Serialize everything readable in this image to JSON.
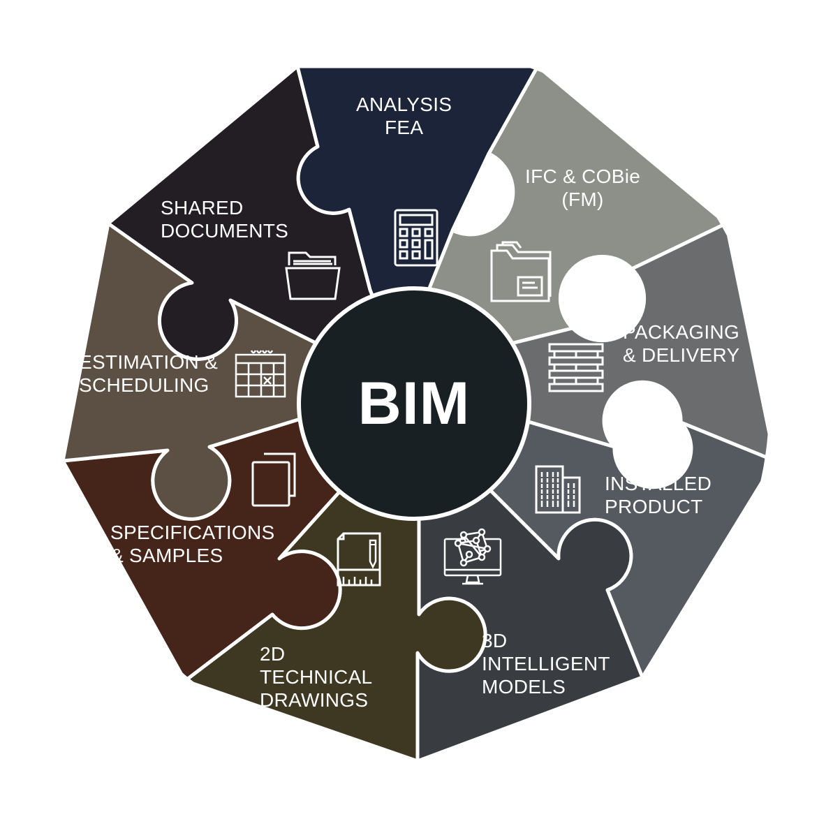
{
  "center": {
    "text": "BIM",
    "color": "#182023"
  },
  "segments": [
    {
      "id": "analysis",
      "lines": [
        "ANALYSIS",
        "FEA"
      ],
      "color": "#1b2438",
      "icon": "calculator-icon"
    },
    {
      "id": "ifc",
      "lines": [
        "IFC & COBie",
        "(FM)"
      ],
      "color": "#8d8f89",
      "icon": "folder-document-icon"
    },
    {
      "id": "packaging",
      "lines": [
        "PACKAGING",
        "& DELIVERY"
      ],
      "color": "#6a6c6d",
      "icon": "pallet-stack-icon"
    },
    {
      "id": "installed",
      "lines": [
        "INSTALLED",
        "PRODUCT"
      ],
      "color": "#555a61",
      "icon": "building-icon"
    },
    {
      "id": "models",
      "lines": [
        "3D",
        "INTELLIGENT",
        "MODELS"
      ],
      "color": "#393d41",
      "icon": "3d-model-monitor-icon"
    },
    {
      "id": "drawings",
      "lines": [
        "2D",
        "TECHNICAL",
        "DRAWINGS"
      ],
      "color": "#3e3721",
      "icon": "technical-drawing-icon"
    },
    {
      "id": "specs",
      "lines": [
        "SPECIFICATIONS",
        "& SAMPLES"
      ],
      "color": "#45241a",
      "icon": "stacked-pages-icon"
    },
    {
      "id": "estimation",
      "lines": [
        "ESTIMATION &",
        "SCHEDULING"
      ],
      "color": "#5c4f43",
      "icon": "calendar-icon"
    },
    {
      "id": "shared",
      "lines": [
        "SHARED",
        "DOCUMENTS"
      ],
      "color": "#221e24",
      "icon": "open-folder-icon"
    }
  ]
}
